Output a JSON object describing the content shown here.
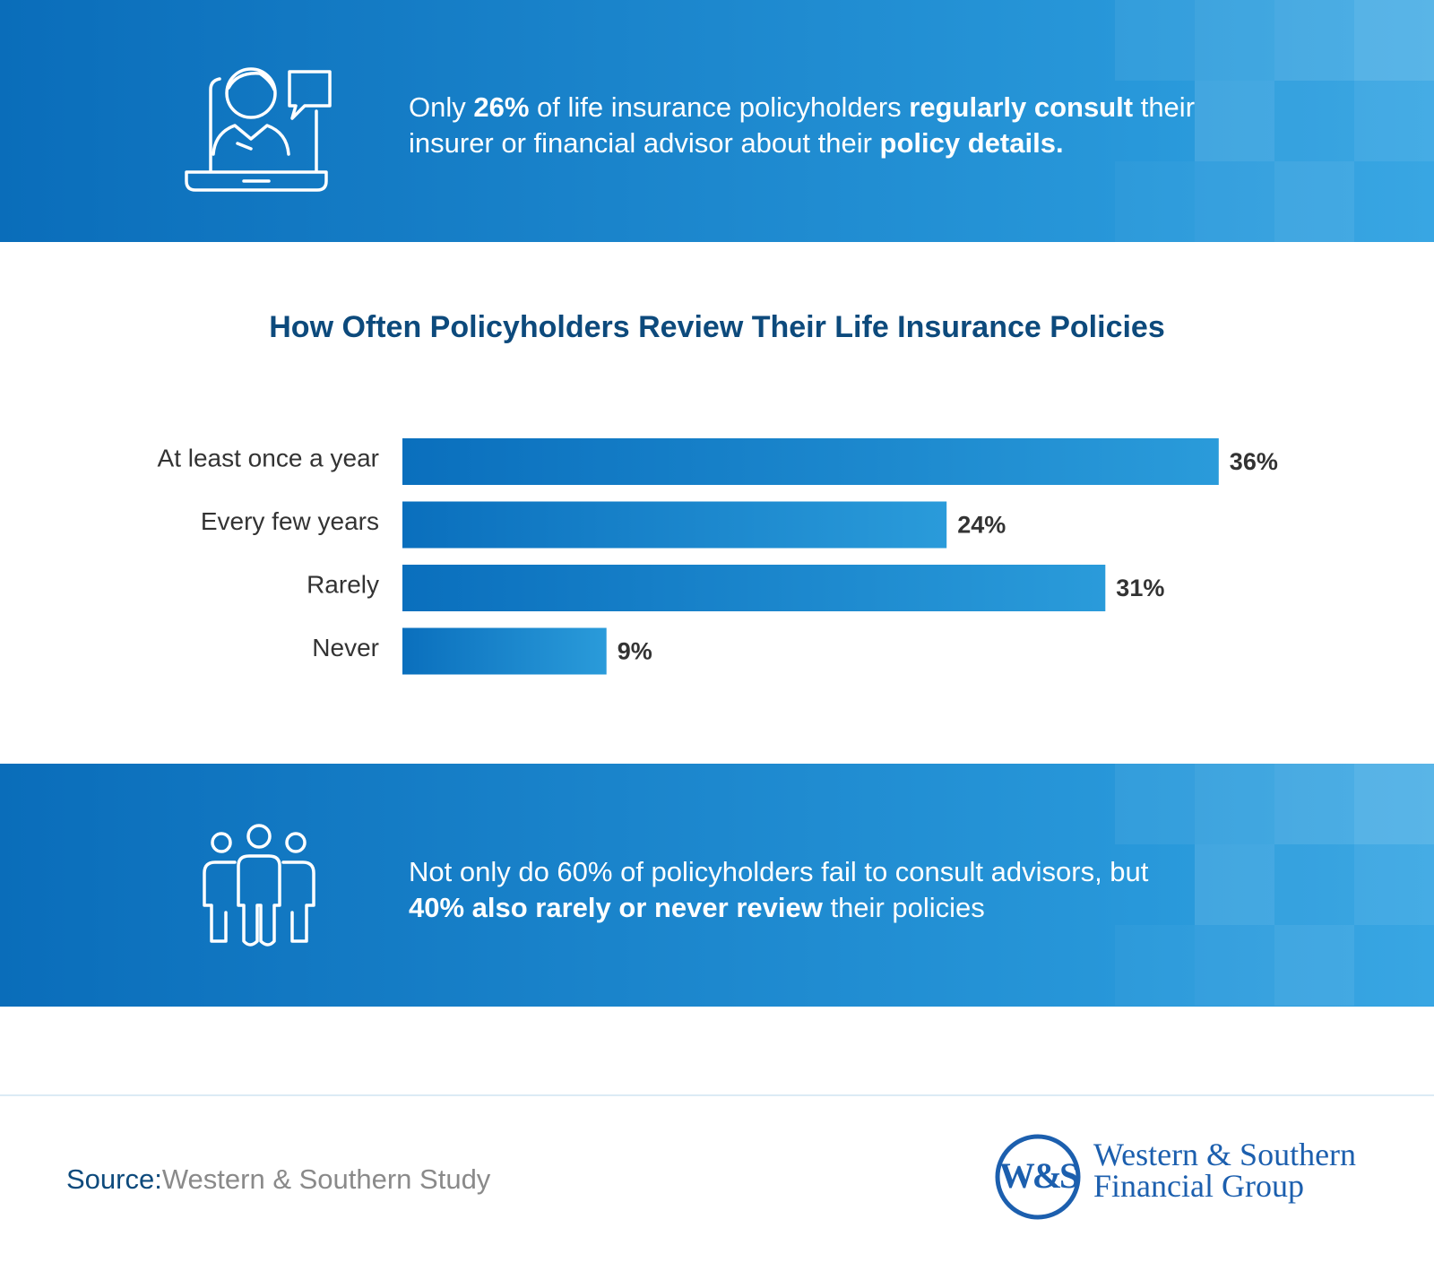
{
  "top_banner": {
    "lines": [
      [
        "Only ",
        "26%",
        " of life insurance policyholders ",
        "regularly consult",
        " their"
      ],
      [
        "insurer or financial advisor about their ",
        "policy details."
      ]
    ]
  },
  "chart_data": {
    "type": "bar",
    "orientation": "horizontal",
    "title": "How Often Policyholders Review Their Life Insurance Policies",
    "categories": [
      "At least once a year",
      "Every few years",
      "Rarely",
      "Never"
    ],
    "values": [
      36,
      24,
      31,
      9
    ],
    "value_labels": [
      "36%",
      "24%",
      "31%",
      "9%"
    ],
    "color": [
      "#0a6fbd",
      "#2a9bda"
    ]
  },
  "bottom_banner": {
    "lines": [
      [
        "Not only do 60% of policyholders fail to consult advisors, but"
      ],
      [
        "40% also rarely or never review",
        " their policies"
      ]
    ]
  },
  "footer": {
    "source_label": "Source:",
    "source_text": "Western & Southern Study",
    "logo_monogram": "W&S",
    "logo_lines": [
      "Western & Southern",
      "Financial Group"
    ]
  }
}
